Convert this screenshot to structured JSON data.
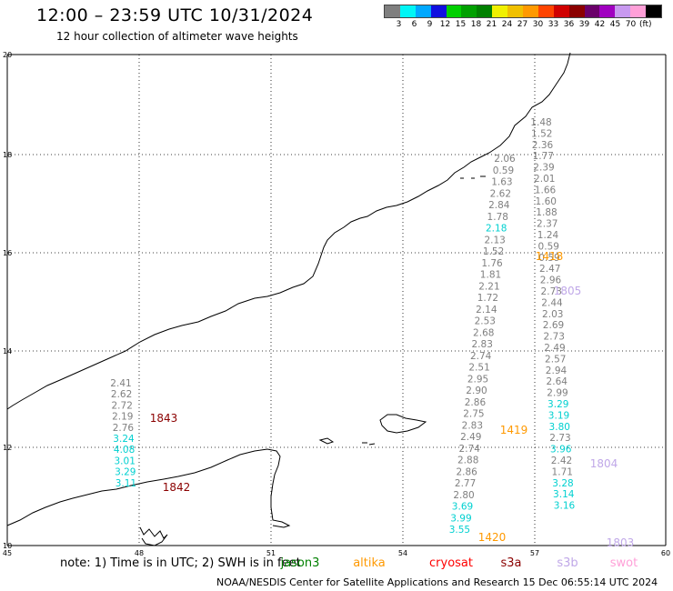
{
  "title": "12:00 – 23:59 UTC 10/31/2024",
  "subtitle": "12 hour collection of altimeter wave heights",
  "scale": {
    "colors": [
      "#7f7f7f",
      "#00f5f5",
      "#00a8ff",
      "#1010e0",
      "#00d000",
      "#00a000",
      "#008000",
      "#f0f000",
      "#f0c000",
      "#ff9900",
      "#ff4400",
      "#d00000",
      "#8b0000",
      "#6a006a",
      "#a000c0",
      "#c899f0",
      "#ffa0d8",
      "#000000"
    ],
    "labels": [
      "3",
      "6",
      "9",
      "12",
      "15",
      "18",
      "21",
      "24",
      "27",
      "30",
      "33",
      "36",
      "39",
      "42",
      "45",
      "70"
    ],
    "unit": "(ft)"
  },
  "axes": {
    "x_ticks": [
      "45",
      "48",
      "51",
      "54",
      "57",
      "60"
    ],
    "y_ticks": [
      "10",
      "12",
      "14",
      "16",
      "18",
      "20"
    ]
  },
  "satellite_labels": [
    {
      "text": "1843",
      "color": "#8b0000"
    },
    {
      "text": "1842",
      "color": "#8b0000"
    },
    {
      "text": "1418",
      "color": "#ff9900"
    },
    {
      "text": "1805",
      "color": "#c0a8e8"
    },
    {
      "text": "1419",
      "color": "#ff9900"
    },
    {
      "text": "1804",
      "color": "#c0a8e8"
    },
    {
      "text": "1420",
      "color": "#ff9900"
    },
    {
      "text": "1803",
      "color": "#c0a8e8"
    }
  ],
  "tracks": [
    {
      "values": [
        "2.41",
        "2.62",
        "2.72",
        "2.19",
        "2.76",
        "3.24",
        "4.08",
        "3.01",
        "3.29",
        "3.11"
      ],
      "colors": [
        "#7f7f7f",
        "#7f7f7f",
        "#7f7f7f",
        "#7f7f7f",
        "#7f7f7f",
        "#00d0d0",
        "#00d0d0",
        "#00d0d0",
        "#00d0d0",
        "#00d0d0"
      ]
    },
    {
      "values": [
        "1.48",
        "1.52",
        "2.36",
        "1.77",
        "2.39",
        "2.01",
        "1.66",
        "1.60",
        "1.88",
        "2.37",
        "1.24",
        "0.59",
        "0.59",
        "2.47",
        "2.96",
        "2.73",
        "2.44",
        "2.03",
        "2.69",
        "2.73",
        "2.49",
        "2.57",
        "2.94",
        "2.64",
        "2.99",
        "3.29",
        "3.19",
        "3.80",
        "2.73",
        "3.96",
        "2.42",
        "1.71",
        "3.28",
        "3.14",
        "3.16"
      ],
      "colors": [
        "#7f7f7f",
        "#7f7f7f",
        "#7f7f7f",
        "#7f7f7f",
        "#7f7f7f",
        "#7f7f7f",
        "#7f7f7f",
        "#7f7f7f",
        "#7f7f7f",
        "#7f7f7f",
        "#7f7f7f",
        "#7f7f7f",
        "#7f7f7f",
        "#7f7f7f",
        "#7f7f7f",
        "#7f7f7f",
        "#7f7f7f",
        "#7f7f7f",
        "#7f7f7f",
        "#7f7f7f",
        "#7f7f7f",
        "#7f7f7f",
        "#7f7f7f",
        "#7f7f7f",
        "#7f7f7f",
        "#00d0d0",
        "#00d0d0",
        "#00d0d0",
        "#7f7f7f",
        "#00d0d0",
        "#7f7f7f",
        "#7f7f7f",
        "#00d0d0",
        "#00d0d0",
        "#00d0d0"
      ]
    },
    {
      "values": [
        "2.06",
        "0.59",
        "1.63",
        "2.62",
        "2.84",
        "1.78",
        "2.18",
        "2.13",
        "1.52",
        "1.76",
        "1.81",
        "2.21",
        "1.72",
        "2.14",
        "2.53",
        "2.68",
        "2.83",
        "2.74",
        "2.51",
        "2.95",
        "2.90",
        "2.86",
        "2.75",
        "2.83",
        "2.49",
        "2.74",
        "2.88",
        "2.86",
        "2.77",
        "2.80",
        "3.69",
        "3.99",
        "3.55"
      ],
      "colors": [
        "#7f7f7f",
        "#7f7f7f",
        "#7f7f7f",
        "#7f7f7f",
        "#7f7f7f",
        "#7f7f7f",
        "#00d0d0",
        "#7f7f7f",
        "#7f7f7f",
        "#7f7f7f",
        "#7f7f7f",
        "#7f7f7f",
        "#7f7f7f",
        "#7f7f7f",
        "#7f7f7f",
        "#7f7f7f",
        "#7f7f7f",
        "#7f7f7f",
        "#7f7f7f",
        "#7f7f7f",
        "#7f7f7f",
        "#7f7f7f",
        "#7f7f7f",
        "#7f7f7f",
        "#7f7f7f",
        "#7f7f7f",
        "#7f7f7f",
        "#7f7f7f",
        "#7f7f7f",
        "#7f7f7f",
        "#00d0d0",
        "#00d0d0",
        "#00d0d0"
      ]
    }
  ],
  "footer": {
    "note": "note: 1) Time is in UTC; 2) SWH is in feet",
    "legend": [
      {
        "name": "jason3",
        "color": "#008000"
      },
      {
        "name": "altika",
        "color": "#ff9900"
      },
      {
        "name": "cryosat",
        "color": "#ff0000"
      },
      {
        "name": "s3a",
        "color": "#8b0000"
      },
      {
        "name": "s3b",
        "color": "#c0a8e8"
      },
      {
        "name": "swot",
        "color": "#ffa0d8"
      }
    ],
    "credit": "NOAA/NESDIS Center for Satellite Applications and Research   15 Dec 06:55:14 UTC 2024"
  }
}
